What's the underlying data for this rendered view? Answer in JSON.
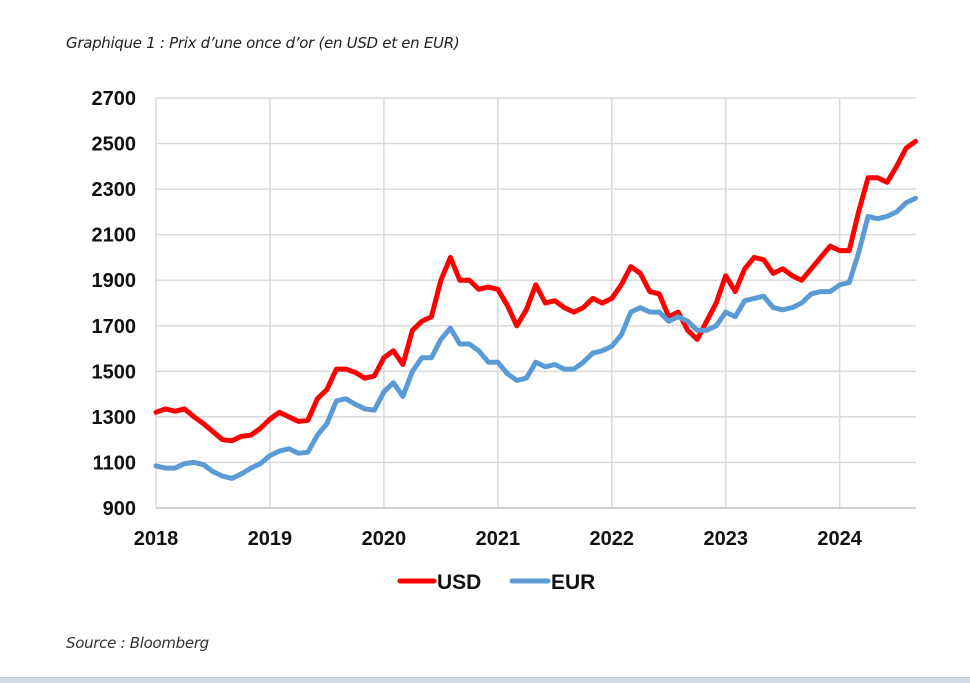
{
  "title": "Graphique 1 : Prix d’une once d’or (en USD et en EUR)",
  "source": "Source : Bloomberg",
  "chart_data": {
    "type": "line",
    "title": "Graphique 1 : Prix d’une once d’or (en USD et en EUR)",
    "xlabel": "",
    "ylabel": "",
    "xlim": [
      2018,
      2024.67
    ],
    "ylim": [
      900,
      2700
    ],
    "yticks": [
      900,
      1100,
      1300,
      1500,
      1700,
      1900,
      2100,
      2300,
      2500,
      2700
    ],
    "xticks": [
      2018,
      2019,
      2020,
      2021,
      2022,
      2023,
      2024
    ],
    "grid": true,
    "legend": "bottom",
    "colors": {
      "USD": "#ff0000",
      "EUR": "#5b9bd5"
    },
    "series": [
      {
        "name": "USD",
        "values": [
          1320,
          1335,
          1325,
          1335,
          1300,
          1270,
          1235,
          1200,
          1195,
          1215,
          1220,
          1250,
          1290,
          1320,
          1300,
          1280,
          1285,
          1380,
          1420,
          1510,
          1510,
          1495,
          1470,
          1480,
          1560,
          1590,
          1530,
          1680,
          1720,
          1740,
          1900,
          2000,
          1900,
          1900,
          1860,
          1870,
          1860,
          1790,
          1700,
          1770,
          1880,
          1800,
          1810,
          1780,
          1760,
          1780,
          1820,
          1800,
          1820,
          1880,
          1960,
          1930,
          1850,
          1840,
          1740,
          1760,
          1680,
          1640,
          1720,
          1800,
          1920,
          1850,
          1950,
          2000,
          1990,
          1930,
          1950,
          1920,
          1900,
          1950,
          2000,
          2050,
          2030,
          2030,
          2200,
          2350,
          2350,
          2330,
          2400,
          2480,
          2510
        ]
      },
      {
        "name": "EUR",
        "values": [
          1085,
          1075,
          1075,
          1095,
          1100,
          1090,
          1060,
          1040,
          1030,
          1050,
          1075,
          1095,
          1130,
          1150,
          1160,
          1140,
          1145,
          1220,
          1270,
          1370,
          1380,
          1355,
          1335,
          1330,
          1410,
          1450,
          1390,
          1500,
          1560,
          1560,
          1640,
          1690,
          1620,
          1620,
          1590,
          1540,
          1540,
          1490,
          1460,
          1470,
          1540,
          1520,
          1530,
          1510,
          1510,
          1540,
          1580,
          1590,
          1610,
          1660,
          1760,
          1780,
          1760,
          1760,
          1720,
          1740,
          1720,
          1680,
          1680,
          1700,
          1760,
          1740,
          1810,
          1820,
          1830,
          1780,
          1770,
          1780,
          1800,
          1840,
          1850,
          1850,
          1880,
          1890,
          2020,
          2180,
          2170,
          2180,
          2200,
          2240,
          2260
        ]
      }
    ],
    "x_step_months": 1,
    "x_start": 2018
  }
}
